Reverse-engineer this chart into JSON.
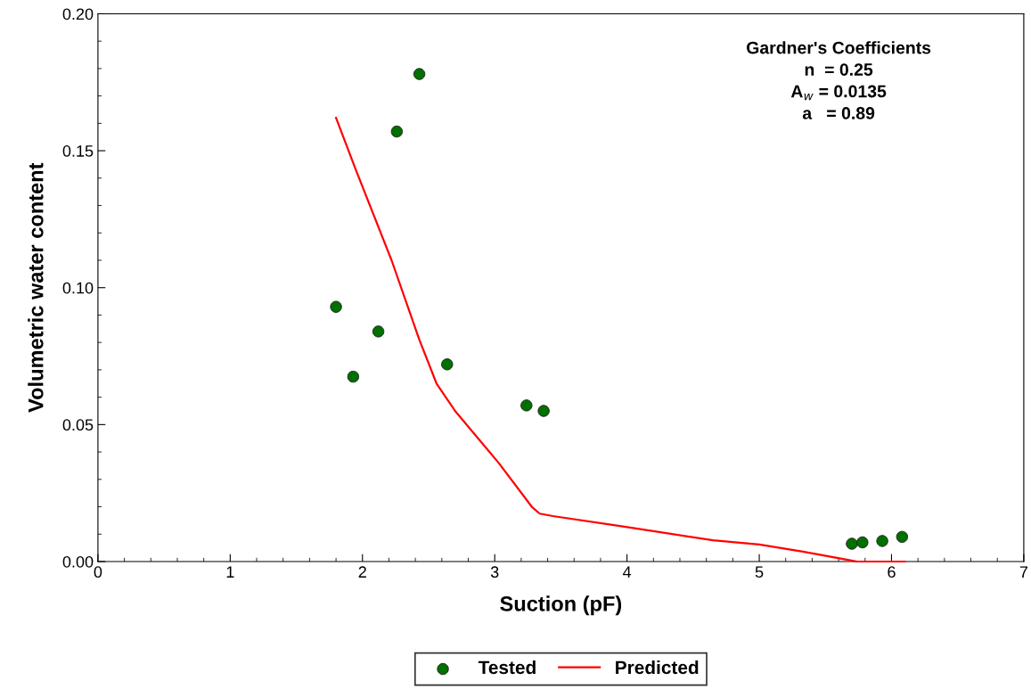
{
  "chart_data": {
    "type": "scatter",
    "xlabel": "Suction (pF)",
    "ylabel": "Volumetric water content",
    "annotations": [
      "Gardner's Coefficients\nn  = 0.25\nA$_{w}$ = 0.0135\na   = 0.89"
    ],
    "xlim": [
      0,
      7
    ],
    "xticks": [
      0,
      1,
      2,
      3,
      4,
      5,
      6,
      7
    ],
    "ylim": [
      0,
      0.2
    ],
    "yticks": [
      {
        "value": 0,
        "label": "0.00"
      },
      {
        "value": 0.05,
        "label": "0.05"
      },
      {
        "value": 0.1,
        "label": "0.10"
      },
      {
        "value": 0.15,
        "label": "0.15"
      },
      {
        "value": 0.2,
        "label": "0.20"
      }
    ],
    "grid": false,
    "legend": "bottom",
    "series": [
      {
        "name": "Tested",
        "marker": "circle",
        "color": "#007000",
        "x": [
          1.8,
          1.93,
          2.12,
          2.26,
          2.43,
          2.64,
          3.24,
          3.37,
          5.7,
          5.78,
          5.93,
          6.08
        ],
        "values": [
          0.093,
          0.0675,
          0.084,
          0.157,
          0.178,
          0.072,
          0.057,
          0.055,
          0.0065,
          0.007,
          0.0075,
          0.009
        ]
      },
      {
        "name": "Predicted",
        "type": "line",
        "marker": "none",
        "line_style": "solid",
        "color": "#ff0000",
        "x": [
          1.8,
          1.95,
          2.22,
          2.43,
          2.56,
          2.7,
          3.03,
          3.28,
          3.34,
          3.44,
          3.98,
          4.65,
          5.0,
          5.33,
          5.66,
          5.74,
          6.1
        ],
        "values": [
          0.162,
          0.143,
          0.11,
          0.081,
          0.065,
          0.055,
          0.036,
          0.02,
          0.0175,
          0.0166,
          0.0127,
          0.0078,
          0.0062,
          0.0036,
          0.0007,
          0,
          0
        ]
      }
    ]
  }
}
